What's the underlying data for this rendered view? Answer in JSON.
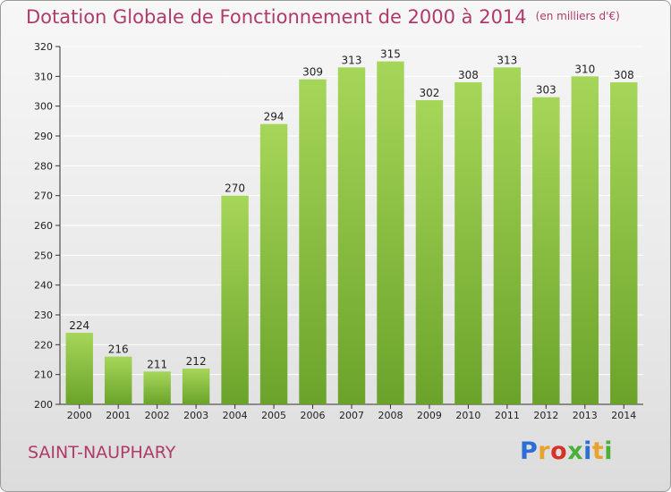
{
  "title": "Dotation Globale de Fonctionnement de 2000 à 2014",
  "unit_note": "(en milliers d'€)",
  "commune": "SAINT-NAUPHARY",
  "logo": {
    "letters": [
      "P",
      "r",
      "o",
      "x",
      "i",
      "t",
      "i"
    ],
    "colors": [
      "#2b6fd6",
      "#e8a32a",
      "#d6322b",
      "#4caf3a",
      "#2b6fd6",
      "#e8a32a",
      "#4caf3a"
    ]
  },
  "colors": {
    "bar_top": "#a6d659",
    "bar_bottom": "#6ba32a",
    "title": "#b03a6b",
    "grid": "#ffffff"
  },
  "chart_data": {
    "type": "bar",
    "title": "Dotation Globale de Fonctionnement de 2000 à 2014",
    "categories": [
      "2000",
      "2001",
      "2002",
      "2003",
      "2004",
      "2005",
      "2006",
      "2007",
      "2008",
      "2009",
      "2010",
      "2011",
      "2012",
      "2013",
      "2014"
    ],
    "values": [
      224,
      216,
      211,
      212,
      270,
      294,
      309,
      313,
      315,
      302,
      308,
      313,
      303,
      310,
      308
    ],
    "ylim": [
      200,
      320
    ],
    "yticks": [
      200,
      210,
      220,
      230,
      240,
      250,
      260,
      270,
      280,
      290,
      300,
      310,
      320
    ],
    "grid": true,
    "xlabel": "",
    "ylabel": ""
  }
}
